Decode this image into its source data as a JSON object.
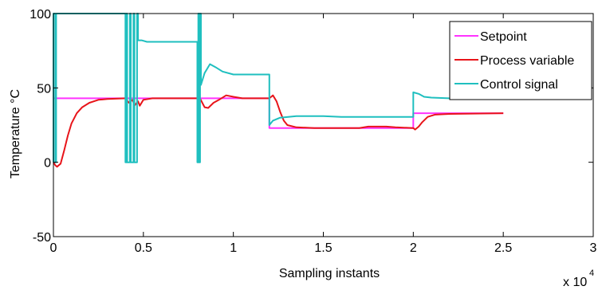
{
  "chart_data": {
    "type": "line",
    "xlabel": "Sampling instants",
    "ylabel": "Temperature °C",
    "x_multiplier_label": "x 10",
    "x_multiplier_exp": "4",
    "xlim": [
      0,
      3
    ],
    "ylim": [
      -50,
      100
    ],
    "x_ticks": [
      "0",
      "0.5",
      "1",
      "1.5",
      "2",
      "2.5",
      "3"
    ],
    "x_tick_values": [
      0,
      0.5,
      1,
      1.5,
      2,
      2.5,
      3
    ],
    "y_ticks": [
      "-50",
      "0",
      "50",
      "100"
    ],
    "y_tick_values": [
      -50,
      0,
      50,
      100
    ],
    "grid": false,
    "legend_position": "top-right",
    "colors": {
      "Setpoint": "#ff33ff",
      "Process variable": "#e8141a",
      "Control signal": "#1fbfbf"
    },
    "series": [
      {
        "name": "Setpoint",
        "color": "#ff33ff",
        "points": [
          [
            0.0,
            43
          ],
          [
            1.2,
            43
          ],
          [
            1.2,
            23
          ],
          [
            2.0,
            23
          ],
          [
            2.0,
            33
          ],
          [
            2.5,
            33
          ]
        ]
      },
      {
        "name": "Process variable",
        "color": "#e8141a",
        "points": [
          [
            0.0,
            0
          ],
          [
            0.01,
            -2
          ],
          [
            0.02,
            -3
          ],
          [
            0.04,
            -1
          ],
          [
            0.06,
            8
          ],
          [
            0.08,
            18
          ],
          [
            0.1,
            26
          ],
          [
            0.13,
            33
          ],
          [
            0.16,
            37
          ],
          [
            0.2,
            40
          ],
          [
            0.25,
            42
          ],
          [
            0.3,
            42.5
          ],
          [
            0.4,
            43
          ],
          [
            0.42,
            40
          ],
          [
            0.44,
            42
          ],
          [
            0.45,
            38
          ],
          [
            0.47,
            41
          ],
          [
            0.48,
            38
          ],
          [
            0.5,
            42
          ],
          [
            0.55,
            43
          ],
          [
            0.8,
            43
          ],
          [
            0.81,
            44
          ],
          [
            0.84,
            37
          ],
          [
            0.86,
            36.5
          ],
          [
            0.89,
            40
          ],
          [
            0.92,
            42
          ],
          [
            0.96,
            45
          ],
          [
            1.0,
            44
          ],
          [
            1.05,
            43
          ],
          [
            1.2,
            43
          ],
          [
            1.21,
            44
          ],
          [
            1.22,
            45
          ],
          [
            1.24,
            41
          ],
          [
            1.26,
            34
          ],
          [
            1.28,
            28
          ],
          [
            1.3,
            25
          ],
          [
            1.35,
            23.5
          ],
          [
            1.45,
            23
          ],
          [
            1.6,
            23
          ],
          [
            1.7,
            23
          ],
          [
            1.75,
            24
          ],
          [
            1.85,
            24
          ],
          [
            1.9,
            23.5
          ],
          [
            2.0,
            23
          ],
          [
            2.01,
            22
          ],
          [
            2.03,
            24
          ],
          [
            2.05,
            27
          ],
          [
            2.08,
            30.5
          ],
          [
            2.12,
            32
          ],
          [
            2.2,
            32.5
          ],
          [
            2.5,
            33
          ]
        ]
      },
      {
        "name": "Control signal",
        "color": "#1fbfbf",
        "points": [
          [
            0.0,
            0
          ],
          [
            0.0,
            100
          ],
          [
            0.01,
            100
          ],
          [
            0.01,
            0
          ],
          [
            0.015,
            0
          ],
          [
            0.015,
            100
          ],
          [
            0.4,
            100
          ],
          [
            0.4,
            0
          ],
          [
            0.405,
            0
          ],
          [
            0.405,
            100
          ],
          [
            0.41,
            100
          ],
          [
            0.41,
            0
          ],
          [
            0.425,
            0
          ],
          [
            0.425,
            100
          ],
          [
            0.43,
            100
          ],
          [
            0.43,
            0
          ],
          [
            0.445,
            0
          ],
          [
            0.445,
            100
          ],
          [
            0.45,
            100
          ],
          [
            0.45,
            0
          ],
          [
            0.465,
            0
          ],
          [
            0.465,
            100
          ],
          [
            0.47,
            100
          ],
          [
            0.47,
            82
          ],
          [
            0.49,
            82
          ],
          [
            0.52,
            81
          ],
          [
            0.8,
            81
          ],
          [
            0.8,
            0
          ],
          [
            0.805,
            0
          ],
          [
            0.805,
            100
          ],
          [
            0.81,
            100
          ],
          [
            0.81,
            0
          ],
          [
            0.815,
            0
          ],
          [
            0.815,
            100
          ],
          [
            0.82,
            100
          ],
          [
            0.82,
            52
          ],
          [
            0.84,
            60
          ],
          [
            0.87,
            66
          ],
          [
            0.9,
            64
          ],
          [
            0.94,
            61
          ],
          [
            1.0,
            59
          ],
          [
            1.2,
            59
          ],
          [
            1.2,
            25
          ],
          [
            1.22,
            28
          ],
          [
            1.26,
            30
          ],
          [
            1.35,
            31
          ],
          [
            1.5,
            31
          ],
          [
            1.6,
            30.5
          ],
          [
            2.0,
            30.5
          ],
          [
            2.0,
            47
          ],
          [
            2.03,
            46
          ],
          [
            2.06,
            44
          ],
          [
            2.1,
            43.5
          ],
          [
            2.2,
            43
          ],
          [
            2.5,
            43
          ],
          [
            2.6,
            43
          ],
          [
            2.64,
            43
          ],
          [
            2.72,
            43
          ]
        ]
      }
    ]
  }
}
